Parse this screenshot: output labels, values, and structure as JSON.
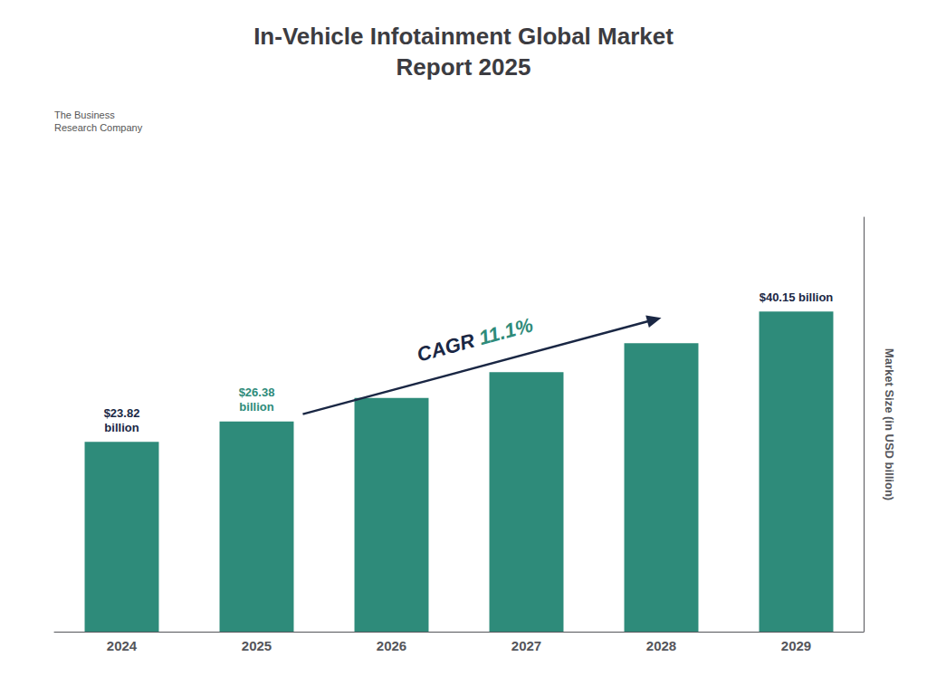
{
  "chart_data": {
    "type": "bar",
    "title": "In-Vehicle Infotainment Global Market\nReport 2025",
    "ylabel": "Market Size (in USD billion)",
    "categories": [
      "2024",
      "2025",
      "2026",
      "2027",
      "2028",
      "2029"
    ],
    "values": [
      23.82,
      26.38,
      29.31,
      32.56,
      36.2,
      40.15
    ],
    "color": "#2e8b7a",
    "ylim": [
      0,
      52
    ],
    "grid": false,
    "tick_labels": "x",
    "annotations": [
      {
        "text": "$23.82\nbillion",
        "category": "2024",
        "color": "#1a2744"
      },
      {
        "text": "$26.38\nbillion",
        "category": "2025",
        "color": "#2e8b7a"
      },
      {
        "text": "$40.15 billion",
        "category": "2029",
        "color": "#1a2744"
      },
      {
        "parts": [
          {
            "text": "CAGR ",
            "color": "#1a2744"
          },
          {
            "text": "11.1%",
            "color": "#2e8b7a"
          }
        ],
        "from": "2025",
        "to": "2028",
        "color": "#1a2744"
      },
      {
        "text": "The Business\nResearch Company",
        "color": "#555555"
      }
    ]
  }
}
